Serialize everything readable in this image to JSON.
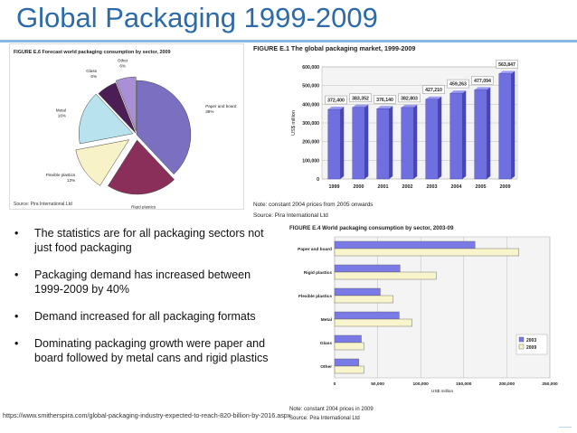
{
  "slide": {
    "title": "Global Packaging 1999-2009",
    "url": "https://www.smitherspira.com/global-packaging-industry-expected-to-reach-820-billion-by-2016.aspx",
    "bullets": [
      "The statistics are for all packaging sectors not just food packaging",
      "Packaging demand has increased between 1999-2009  by 40%",
      "Demand increased for all packaging formats",
      "Dominating packaging growth were paper and board followed by metal cans and rigid plastics"
    ],
    "bullet_glyph": "•"
  },
  "chart_data": [
    {
      "type": "pie",
      "title": "FIGURE E.6 Forecast world packaging consumption by sector, 2009",
      "source": "Source: Pira International Ltd",
      "slices": [
        {
          "label": "Paper and board",
          "pct_label": "38%",
          "value": 38,
          "color": "#7b6fc2"
        },
        {
          "label": "Rigid plastics",
          "pct_label": "21%",
          "value": 21,
          "color": "#8a2e5a"
        },
        {
          "label": "Flexible plastics",
          "pct_label": "13%",
          "value": 13,
          "color": "#f7f2c8"
        },
        {
          "label": "Metal",
          "pct_label": "16%",
          "value": 16,
          "color": "#b7e2ee"
        },
        {
          "label": "Glass",
          "pct_label": "6%",
          "value": 6,
          "color": "#4b1f55"
        },
        {
          "label": "Other",
          "pct_label": "6%",
          "value": 6,
          "color": "#a98fd6"
        }
      ]
    },
    {
      "type": "bar",
      "title": "FIGURE E.1 The global packaging market, 1999-2009",
      "ylabel": "US$ million",
      "ylim": [
        0,
        600000
      ],
      "yticks": [
        "0",
        "100,000",
        "200,000",
        "300,000",
        "400,000",
        "500,000",
        "600,000"
      ],
      "categories": [
        "1999",
        "2000",
        "2001",
        "2002",
        "2003",
        "2004",
        "2005",
        "2009"
      ],
      "values": [
        372400,
        383352,
        376140,
        382803,
        427210,
        459263,
        477094,
        563847
      ],
      "value_labels": [
        "372,400",
        "383,352",
        "376,140",
        "382,803",
        "427,210",
        "459,263",
        "477,094",
        "563,847"
      ],
      "note": "Note: constant 2004 prices from 2005 onwards",
      "source": "Source: Pira International Ltd",
      "bar_color": "#6f6fe0"
    },
    {
      "type": "bar",
      "orientation": "horizontal",
      "title": "FIGURE E.4 World packaging consumption by sector, 2003-09",
      "xlabel": "US$ million",
      "xlim": [
        0,
        250000
      ],
      "xticks": [
        "0",
        "50,000",
        "100,000",
        "150,000",
        "200,000",
        "250,000"
      ],
      "categories": [
        "Paper and board",
        "Rigid plastics",
        "Flexible plastics",
        "Metal",
        "Glass",
        "Other"
      ],
      "series": [
        {
          "name": "2003",
          "color": "#7a7ae6",
          "values": [
            163000,
            76000,
            53000,
            75000,
            31000,
            28000
          ]
        },
        {
          "name": "2009",
          "color": "#f8f4cc",
          "values": [
            214000,
            118000,
            68000,
            90000,
            34000,
            34000
          ]
        }
      ],
      "note": "Note: constant 2004 prices in 2009",
      "source": "Source: Pira International Ltd"
    }
  ]
}
